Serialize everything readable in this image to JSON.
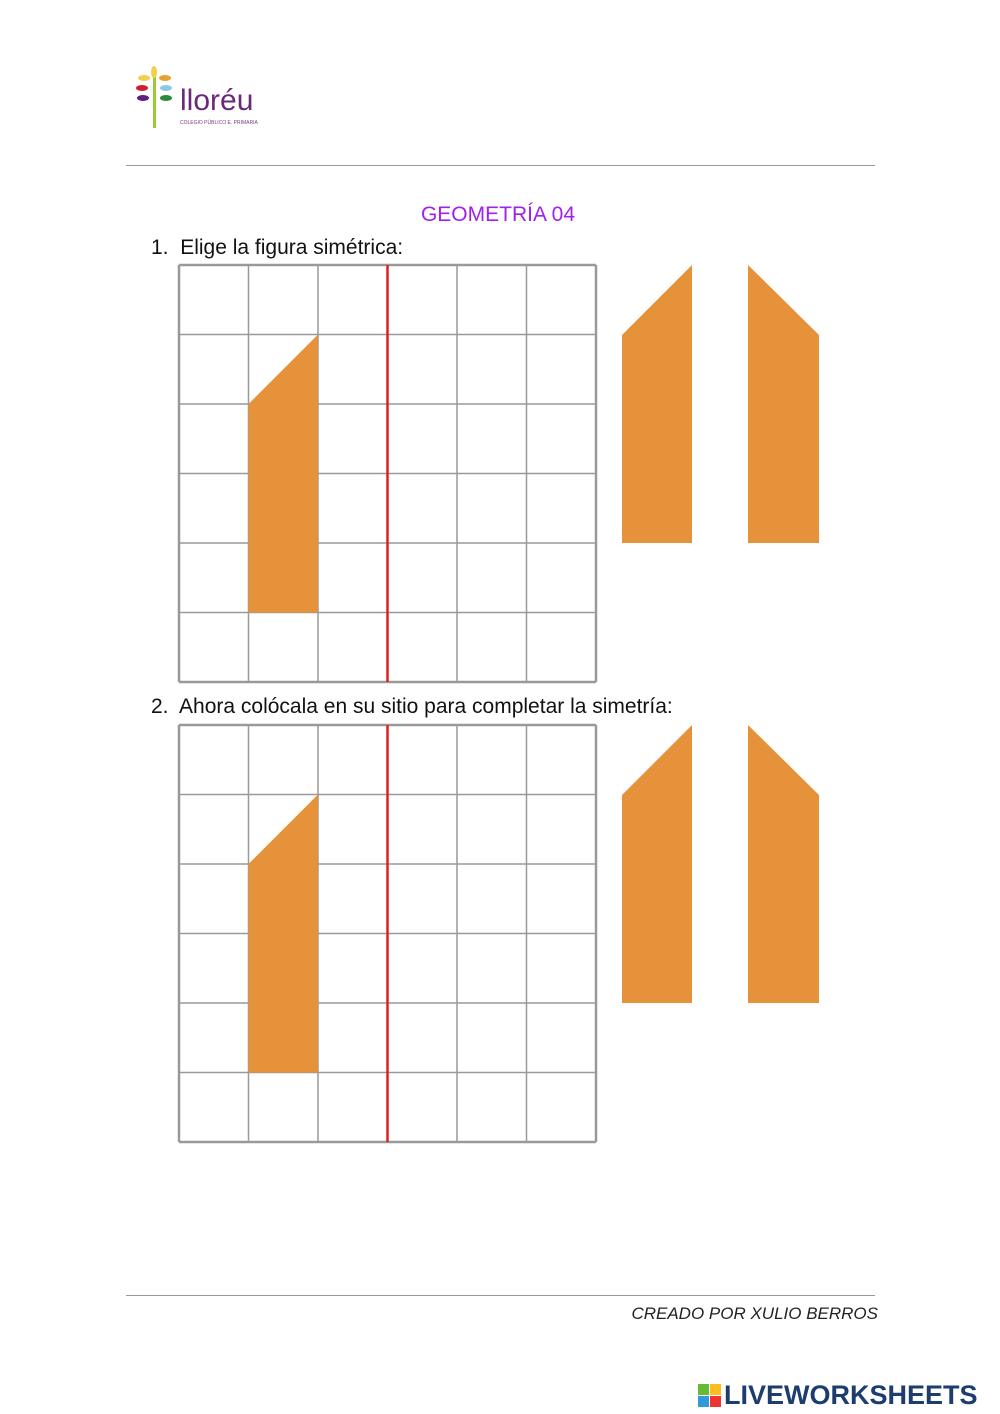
{
  "logo": {
    "name": "lloréu",
    "subtitle": "COLEGIO PÚBLICO E. PRIMARIA"
  },
  "title": "GEOMETRÍA 04",
  "title_color": "#a020f0",
  "questions": [
    {
      "number": "1.",
      "text": "Elige la figura simétrica:"
    },
    {
      "number": "2.",
      "text": "Ahora colócala en su sitio para completar la simetría:"
    }
  ],
  "shape_color": "#e5923a",
  "axis_color": "#e02020",
  "grid": {
    "columns": 6,
    "rows": 6
  },
  "footer": "CREADO POR XULIO BERROS",
  "brand": "LIVEWORKSHEETS"
}
